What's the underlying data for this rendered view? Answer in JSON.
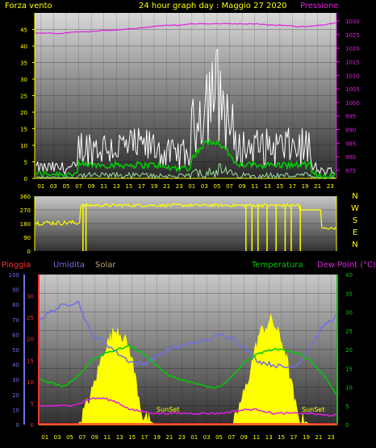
{
  "header": {
    "left_title": "Forza vento",
    "center_title": "24 hour graph day : Maggio 27 2020",
    "right_title": "Pressione"
  },
  "wind_panel": {
    "y_ticks": [
      "45",
      "40",
      "35",
      "30",
      "25",
      "20",
      "15",
      "10",
      "5",
      "0"
    ],
    "pressure_ticks": [
      "1030",
      "1025",
      "1020",
      "1015",
      "1010",
      "1005",
      "1000",
      "995",
      "990",
      "985",
      "980",
      "975"
    ],
    "x_ticks": [
      "01",
      "03",
      "05",
      "07",
      "09",
      "11",
      "13",
      "15",
      "17",
      "19",
      "21",
      "23",
      "01",
      "03",
      "05",
      "07",
      "09",
      "11",
      "13",
      "15",
      "17",
      "19",
      "21",
      "23"
    ]
  },
  "direction_panel": {
    "y_ticks": [
      "360",
      "270",
      "180",
      "90",
      "0"
    ],
    "compass": [
      "N",
      "W",
      "S",
      "E",
      "N"
    ]
  },
  "lower_labels": {
    "rain": "Pioggia",
    "humidity": "Umidita",
    "solar": "Solar",
    "temperature": "Temperatura",
    "dew_point": "Dew Point (°C)",
    "sunset_1": "SunSet",
    "sunset_2": "SunSet"
  },
  "lower_panel": {
    "rain_ticks": [
      "30",
      "25",
      "20",
      "15",
      "10",
      "5",
      "0"
    ],
    "humidity_ticks": [
      "100",
      "90",
      "80",
      "70",
      "60",
      "50",
      "40",
      "30",
      "20",
      "10",
      "0"
    ],
    "temp_ticks": [
      "40",
      "35",
      "30",
      "25",
      "20",
      "15",
      "10",
      "5",
      "0"
    ],
    "x_ticks": [
      "01",
      "03",
      "05",
      "07",
      "09",
      "11",
      "13",
      "15",
      "17",
      "19",
      "21",
      "23",
      "01",
      "03",
      "05",
      "07",
      "09",
      "11",
      "13",
      "15",
      "17",
      "19",
      "21",
      "23"
    ]
  },
  "colors": {
    "wind_gust": "#ffffff",
    "wind_avg": "#00cc00",
    "pressure": "#e020e0",
    "direction": "#ffff00",
    "humidity": "#7070e0",
    "temperature": "#00cc00",
    "dew_point": "#e020e0",
    "solar": "#ffff00",
    "rain": "#ff3030"
  },
  "chart_data": [
    {
      "type": "line",
      "xlabel": "",
      "ylabel": "Forza vento",
      "ylim": [
        0,
        50
      ],
      "y2lim": [
        972,
        1033
      ],
      "x": [
        "01",
        "03",
        "05",
        "07",
        "09",
        "11",
        "13",
        "15",
        "17",
        "19",
        "21",
        "23",
        "01",
        "03",
        "05",
        "07",
        "09",
        "11",
        "13",
        "15",
        "17",
        "19",
        "21",
        "23"
      ],
      "series": [
        {
          "name": "Pressione",
          "axis": "right",
          "values": [
            1025.5,
            1025.5,
            1025.5,
            1026,
            1026,
            1026.5,
            1026.5,
            1027,
            1027.5,
            1028,
            1028.5,
            1028.5,
            1029,
            1029,
            1029,
            1029,
            1029,
            1029,
            1028.5,
            1028.5,
            1028,
            1028,
            1028.5,
            1029.5
          ]
        }
      ]
    },
    {
      "type": "line",
      "ylim": [
        0,
        360
      ],
      "x": [
        "01",
        "03",
        "05",
        "07",
        "09",
        "11",
        "13",
        "15",
        "17",
        "19",
        "21",
        "23",
        "01",
        "03",
        "05",
        "07",
        "09",
        "11",
        "13",
        "15",
        "17",
        "19",
        "21",
        "23"
      ]
    },
    {
      "type": "area",
      "ylim": [
        0,
        40
      ],
      "x": [
        "01",
        "03",
        "05",
        "07",
        "09",
        "11",
        "13",
        "15",
        "17",
        "19",
        "21",
        "23",
        "01",
        "03",
        "05",
        "07",
        "09",
        "11",
        "13",
        "15",
        "17",
        "19",
        "21",
        "23"
      ],
      "series": [
        {
          "name": "Umidita",
          "axis": "humidity",
          "values": [
            70,
            76,
            80,
            82,
            60,
            55,
            48,
            42,
            40,
            45,
            50,
            52,
            55,
            56,
            60,
            58,
            50,
            42,
            40,
            38,
            40,
            52,
            66,
            72
          ]
        },
        {
          "name": "Temperatura",
          "axis": "right",
          "values": [
            12,
            11,
            10,
            13,
            17,
            19,
            20,
            21,
            19,
            16,
            13,
            12,
            11,
            10,
            10,
            13,
            17,
            19,
            20,
            20,
            19,
            17,
            13,
            8
          ]
        },
        {
          "name": "Dew Point",
          "axis": "right",
          "values": [
            5,
            5,
            5,
            5.5,
            7,
            7,
            6,
            4,
            3.5,
            3,
            3,
            3,
            3,
            3,
            3,
            3.5,
            4,
            4,
            3,
            3,
            3,
            3,
            2.5,
            2.5
          ]
        },
        {
          "name": "Solar",
          "axis": "right",
          "values": [
            0,
            0,
            0,
            0,
            8,
            20,
            26,
            20,
            2,
            0,
            0,
            0,
            0,
            0,
            0,
            0,
            10,
            24,
            28,
            20,
            2,
            0,
            0,
            0
          ]
        }
      ]
    }
  ]
}
